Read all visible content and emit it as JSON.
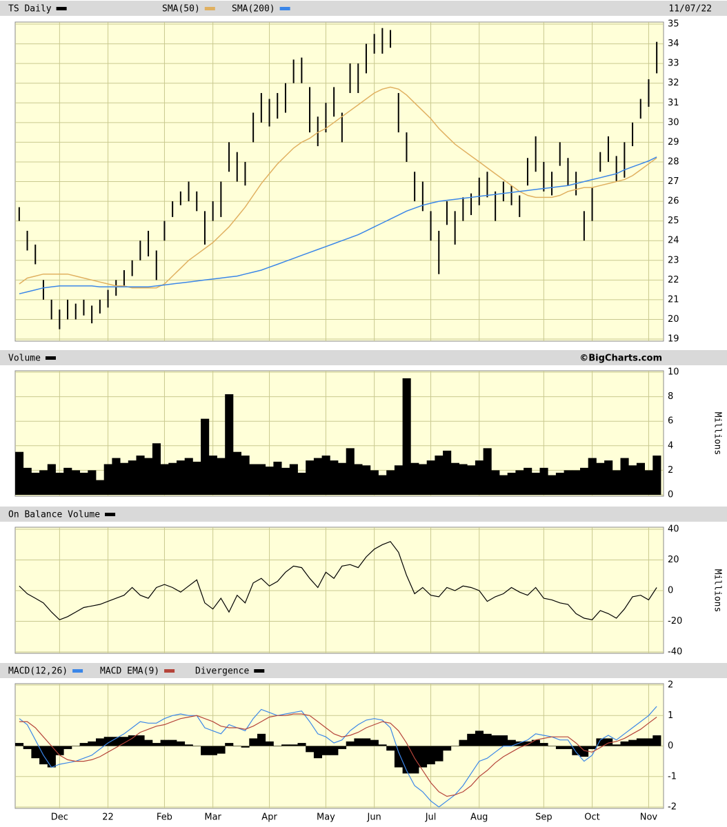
{
  "chart_data": [
    {
      "type": "ohlc",
      "date": "11/07/22",
      "series": [
        {
          "name": "TS Daily",
          "color": "#000000",
          "high": [
            25.7,
            24.5,
            23.8,
            22,
            21,
            20.5,
            21,
            20.8,
            21,
            20.7,
            21,
            21.5,
            22,
            22.5,
            23,
            24,
            24.5,
            23.5,
            25,
            26,
            26.5,
            27,
            26.5,
            25.5,
            26,
            27,
            29,
            28.5,
            28,
            30.5,
            31.5,
            31.2,
            31.5,
            32,
            33.2,
            33.3,
            31.8,
            30.3,
            31,
            31.8,
            30.5,
            33,
            33,
            34,
            34.5,
            34.8,
            34.7,
            31.5,
            29.5,
            27.5,
            27,
            25.5,
            24.5,
            26,
            25.5,
            26.2,
            26.4,
            27.2,
            27.5,
            26.5,
            27,
            26.8,
            26.3,
            28.2,
            29.3,
            28,
            27.5,
            29,
            28.2,
            27.5,
            25.5,
            26.7,
            28.5,
            29.3,
            28.3,
            29,
            30,
            31.2,
            32.2,
            34.1
          ],
          "low": [
            25,
            23.5,
            22.8,
            21,
            20,
            19.5,
            20,
            20,
            20.2,
            19.8,
            20.3,
            20.6,
            21.2,
            21.7,
            22.2,
            23,
            23.2,
            22,
            24,
            25.2,
            25.8,
            26,
            25.5,
            23.8,
            25,
            25.2,
            27.5,
            27,
            26.8,
            29,
            30,
            29.8,
            30.2,
            30.5,
            32,
            32,
            29.5,
            28.8,
            29.5,
            30.3,
            29,
            31.5,
            31.5,
            32.5,
            33.5,
            33.5,
            33.8,
            29.5,
            28,
            26,
            25.5,
            24,
            22.3,
            24.8,
            23.8,
            25,
            25.3,
            25.8,
            26.2,
            25,
            26,
            25.8,
            25.2,
            26.8,
            27.5,
            26.5,
            26.3,
            27.8,
            26.8,
            26.3,
            24,
            25,
            27.5,
            28,
            27,
            27.2,
            28.8,
            30.2,
            30.8,
            32.5
          ]
        },
        {
          "name": "SMA(50)",
          "color": "#e0b060",
          "values": [
            21.8,
            22.1,
            22.2,
            22.3,
            22.3,
            22.3,
            22.3,
            22.2,
            22.1,
            22.0,
            21.9,
            21.8,
            21.7,
            21.7,
            21.6,
            21.6,
            21.6,
            21.6,
            21.8,
            22.2,
            22.6,
            23.0,
            23.3,
            23.6,
            23.9,
            24.3,
            24.7,
            25.2,
            25.7,
            26.3,
            26.9,
            27.4,
            27.9,
            28.3,
            28.7,
            29.0,
            29.2,
            29.5,
            29.7,
            30.0,
            30.3,
            30.6,
            30.9,
            31.2,
            31.5,
            31.7,
            31.8,
            31.7,
            31.4,
            31.0,
            30.6,
            30.2,
            29.7,
            29.3,
            28.9,
            28.6,
            28.3,
            28.0,
            27.7,
            27.4,
            27.1,
            26.8,
            26.5,
            26.3,
            26.2,
            26.2,
            26.2,
            26.3,
            26.5,
            26.6,
            26.7,
            26.7,
            26.8,
            26.9,
            27.0,
            27.1,
            27.3,
            27.6,
            27.9,
            28.2
          ]
        },
        {
          "name": "SMA(200)",
          "color": "#3a86e8",
          "values": [
            21.3,
            21.4,
            21.5,
            21.6,
            21.65,
            21.7,
            21.7,
            21.7,
            21.7,
            21.7,
            21.65,
            21.65,
            21.65,
            21.65,
            21.65,
            21.65,
            21.65,
            21.7,
            21.75,
            21.8,
            21.85,
            21.9,
            21.95,
            22.0,
            22.05,
            22.1,
            22.15,
            22.2,
            22.3,
            22.4,
            22.5,
            22.65,
            22.8,
            22.95,
            23.1,
            23.25,
            23.4,
            23.55,
            23.7,
            23.85,
            24.0,
            24.15,
            24.3,
            24.5,
            24.7,
            24.9,
            25.1,
            25.3,
            25.5,
            25.65,
            25.8,
            25.9,
            26.0,
            26.05,
            26.1,
            26.15,
            26.2,
            26.25,
            26.3,
            26.35,
            26.4,
            26.45,
            26.5,
            26.55,
            26.6,
            26.65,
            26.7,
            26.75,
            26.8,
            26.9,
            27.0,
            27.1,
            27.2,
            27.3,
            27.4,
            27.6,
            27.75,
            27.9,
            28.05,
            28.25
          ]
        }
      ],
      "ylim": [
        19,
        35
      ],
      "yticks": [
        19,
        20,
        21,
        22,
        23,
        24,
        25,
        26,
        27,
        28,
        29,
        30,
        31,
        32,
        33,
        34,
        35
      ],
      "grid": true
    },
    {
      "type": "bar",
      "source": "©BigCharts.com",
      "ylabel": "Millions",
      "series": [
        {
          "name": "Volume",
          "color": "#000000",
          "values": [
            3.5,
            2.2,
            1.8,
            2.0,
            2.5,
            1.8,
            2.2,
            2.0,
            1.8,
            2.0,
            1.2,
            2.5,
            3.0,
            2.6,
            2.8,
            3.2,
            3.0,
            4.2,
            2.5,
            2.6,
            2.8,
            3.0,
            2.7,
            6.2,
            3.2,
            3.0,
            8.2,
            3.5,
            3.2,
            2.5,
            2.5,
            2.3,
            2.7,
            2.2,
            2.5,
            1.8,
            2.8,
            3.0,
            3.2,
            2.8,
            2.6,
            3.8,
            2.5,
            2.4,
            2.0,
            1.6,
            2.0,
            2.4,
            9.5,
            2.6,
            2.5,
            2.8,
            3.2,
            3.6,
            2.6,
            2.5,
            2.4,
            2.8,
            3.8,
            2.0,
            1.6,
            1.8,
            2.0,
            2.2,
            1.8,
            2.2,
            1.6,
            1.8,
            2.0,
            2.0,
            2.2,
            3.0,
            2.6,
            2.8,
            2.0,
            3.0,
            2.4,
            2.6,
            2.0,
            3.2
          ]
        }
      ],
      "ylim": [
        0,
        10
      ],
      "yticks": [
        0,
        2,
        4,
        6,
        8,
        10
      ],
      "grid": true
    },
    {
      "type": "line",
      "ylabel": "Millions",
      "series": [
        {
          "name": "On Balance Volume",
          "color": "#000000",
          "values": [
            3,
            -2,
            -5,
            -8,
            -14,
            -19,
            -17,
            -14,
            -11,
            -10,
            -9,
            -7,
            -5,
            -3,
            2,
            -3,
            -5,
            2,
            4,
            2,
            -1,
            3,
            7,
            -8,
            -12,
            -5,
            -14,
            -3,
            -8,
            5,
            8,
            3,
            6,
            12,
            16,
            15,
            8,
            2,
            12,
            8,
            16,
            17,
            15,
            22,
            27,
            30,
            32,
            25,
            10,
            -2,
            2,
            -3,
            -4,
            2,
            0,
            3,
            2,
            0,
            -7,
            -4,
            -2,
            2,
            -1,
            -3,
            2,
            -5,
            -6,
            -8,
            -9,
            -15,
            -18,
            -19,
            -13,
            -15,
            -18,
            -12,
            -4,
            -3,
            -6,
            2
          ]
        }
      ],
      "ylim": [
        -40,
        40
      ],
      "yticks": [
        -40,
        -20,
        0,
        20,
        40
      ],
      "grid": true
    },
    {
      "type": "line",
      "categories": [
        null,
        null,
        null,
        null,
        null,
        "Dec",
        null,
        null,
        null,
        null,
        null,
        "22",
        null,
        null,
        null,
        null,
        null,
        null,
        "Feb",
        null,
        null,
        null,
        null,
        null,
        "Mar",
        null,
        null,
        null,
        null,
        null,
        null,
        "Apr",
        null,
        null,
        null,
        null,
        null,
        null,
        "May",
        null,
        null,
        null,
        null,
        null,
        "Jun",
        null,
        null,
        null,
        null,
        null,
        null,
        "Jul",
        null,
        null,
        null,
        null,
        null,
        "Aug",
        null,
        null,
        null,
        null,
        null,
        null,
        null,
        "Sep",
        null,
        null,
        null,
        null,
        null,
        "Oct",
        null,
        null,
        null,
        null,
        null,
        null,
        "Nov",
        null
      ],
      "series": [
        {
          "name": "MACD(12,26)",
          "color": "#3a86e8",
          "values": [
            0.9,
            0.7,
            0.2,
            -0.3,
            -0.7,
            -0.6,
            -0.55,
            -0.5,
            -0.4,
            -0.3,
            -0.1,
            0.1,
            0.25,
            0.4,
            0.6,
            0.8,
            0.75,
            0.75,
            0.9,
            1.0,
            1.05,
            1.0,
            1.0,
            0.6,
            0.5,
            0.4,
            0.7,
            0.6,
            0.5,
            0.9,
            1.2,
            1.1,
            1.0,
            1.05,
            1.1,
            1.15,
            0.8,
            0.4,
            0.3,
            0.1,
            0.2,
            0.5,
            0.7,
            0.85,
            0.9,
            0.85,
            0.6,
            -0.2,
            -0.8,
            -1.3,
            -1.5,
            -1.8,
            -2.0,
            -1.8,
            -1.6,
            -1.3,
            -0.9,
            -0.5,
            -0.4,
            -0.2,
            0,
            0,
            0.1,
            0.2,
            0.4,
            0.35,
            0.3,
            0.2,
            0.2,
            -0.2,
            -0.5,
            -0.3,
            0.2,
            0.35,
            0.2,
            0.4,
            0.6,
            0.8,
            1.0,
            1.3
          ]
        },
        {
          "name": "MACD EMA(9)",
          "color": "#b5443a",
          "values": [
            0.8,
            0.8,
            0.6,
            0.3,
            0,
            -0.3,
            -0.45,
            -0.5,
            -0.5,
            -0.45,
            -0.35,
            -0.2,
            -0.05,
            0.1,
            0.25,
            0.45,
            0.55,
            0.65,
            0.7,
            0.8,
            0.9,
            0.95,
            1.0,
            0.9,
            0.8,
            0.65,
            0.6,
            0.6,
            0.55,
            0.65,
            0.8,
            0.95,
            1.0,
            1.0,
            1.05,
            1.05,
            1.0,
            0.8,
            0.6,
            0.4,
            0.3,
            0.35,
            0.45,
            0.6,
            0.7,
            0.8,
            0.75,
            0.5,
            0.1,
            -0.4,
            -0.8,
            -1.2,
            -1.5,
            -1.65,
            -1.6,
            -1.5,
            -1.3,
            -1.0,
            -0.8,
            -0.55,
            -0.35,
            -0.2,
            -0.05,
            0.05,
            0.2,
            0.25,
            0.3,
            0.3,
            0.3,
            0.1,
            -0.15,
            -0.2,
            -0.05,
            0.1,
            0.15,
            0.25,
            0.4,
            0.55,
            0.75,
            0.95
          ]
        },
        {
          "name": "Divergence",
          "color": "#000000",
          "type": "bar",
          "values": [
            0.1,
            -0.1,
            -0.4,
            -0.6,
            -0.7,
            -0.3,
            -0.1,
            0,
            0.1,
            0.15,
            0.25,
            0.3,
            0.3,
            0.3,
            0.35,
            0.35,
            0.2,
            0.1,
            0.2,
            0.2,
            0.15,
            0.05,
            0,
            -0.3,
            -0.3,
            -0.25,
            0.1,
            0,
            -0.05,
            0.25,
            0.4,
            0.15,
            0,
            0.05,
            0.05,
            0.1,
            -0.2,
            -0.4,
            -0.3,
            -0.3,
            -0.1,
            0.15,
            0.25,
            0.25,
            0.2,
            0.05,
            -0.15,
            -0.7,
            -0.9,
            -0.9,
            -0.7,
            -0.6,
            -0.5,
            -0.15,
            0,
            0.2,
            0.4,
            0.5,
            0.4,
            0.35,
            0.35,
            0.2,
            0.15,
            0.15,
            0.2,
            0.1,
            0,
            -0.1,
            -0.1,
            -0.3,
            -0.35,
            -0.1,
            0.25,
            0.25,
            0.05,
            0.15,
            0.2,
            0.25,
            0.25,
            0.35
          ]
        }
      ],
      "ylim": [
        -2,
        2
      ],
      "yticks": [
        -2,
        -1,
        0,
        1,
        2
      ],
      "grid": true
    }
  ]
}
